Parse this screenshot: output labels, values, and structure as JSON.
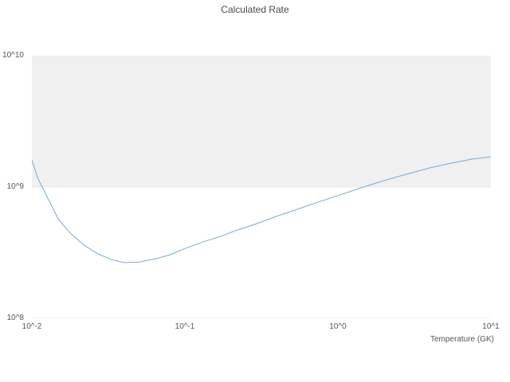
{
  "chart_data": {
    "type": "line",
    "title": "Calculated Rate",
    "xlabel": "Temperature (GK)",
    "ylabel": "",
    "x_scale": "log",
    "y_scale": "log",
    "xlim": [
      0.01,
      10
    ],
    "ylim": [
      100000000.0,
      10000000000.0
    ],
    "grid": true,
    "legend": "none",
    "x_tick_labels": [
      "10^-2",
      "10^-1",
      "10^0",
      "10^1"
    ],
    "y_tick_labels": [
      "10^8",
      "10^9",
      "10^10"
    ],
    "x_tick_values": [
      0.01,
      0.1,
      1,
      10
    ],
    "y_tick_values": [
      100000000.0,
      1000000000.0,
      10000000000.0
    ],
    "shaded_band": {
      "y_from": 1000000000.0,
      "y_to": 10000000000.0,
      "color": "#f0f0f0"
    },
    "line_color": "#6baed6",
    "grid_color": "#e8e8e8",
    "series": [
      {
        "name": "calculated-rate",
        "x": [
          0.01,
          0.011,
          0.013,
          0.015,
          0.018,
          0.022,
          0.027,
          0.033,
          0.04,
          0.05,
          0.065,
          0.08,
          0.1,
          0.13,
          0.17,
          0.22,
          0.3,
          0.4,
          0.55,
          0.75,
          1.0,
          1.4,
          2.0,
          2.8,
          4.0,
          5.5,
          7.5,
          10.0
        ],
        "y": [
          1600000000.0,
          1150000000.0,
          780000000.0,
          560000000.0,
          440000000.0,
          360000000.0,
          310000000.0,
          280000000.0,
          266000000.0,
          268000000.0,
          285000000.0,
          305000000.0,
          340000000.0,
          380000000.0,
          420000000.0,
          470000000.0,
          530000000.0,
          600000000.0,
          680000000.0,
          770000000.0,
          860000000.0,
          980000000.0,
          1120000000.0,
          1250000000.0,
          1400000000.0,
          1520000000.0,
          1630000000.0,
          1700000000.0
        ]
      }
    ]
  }
}
